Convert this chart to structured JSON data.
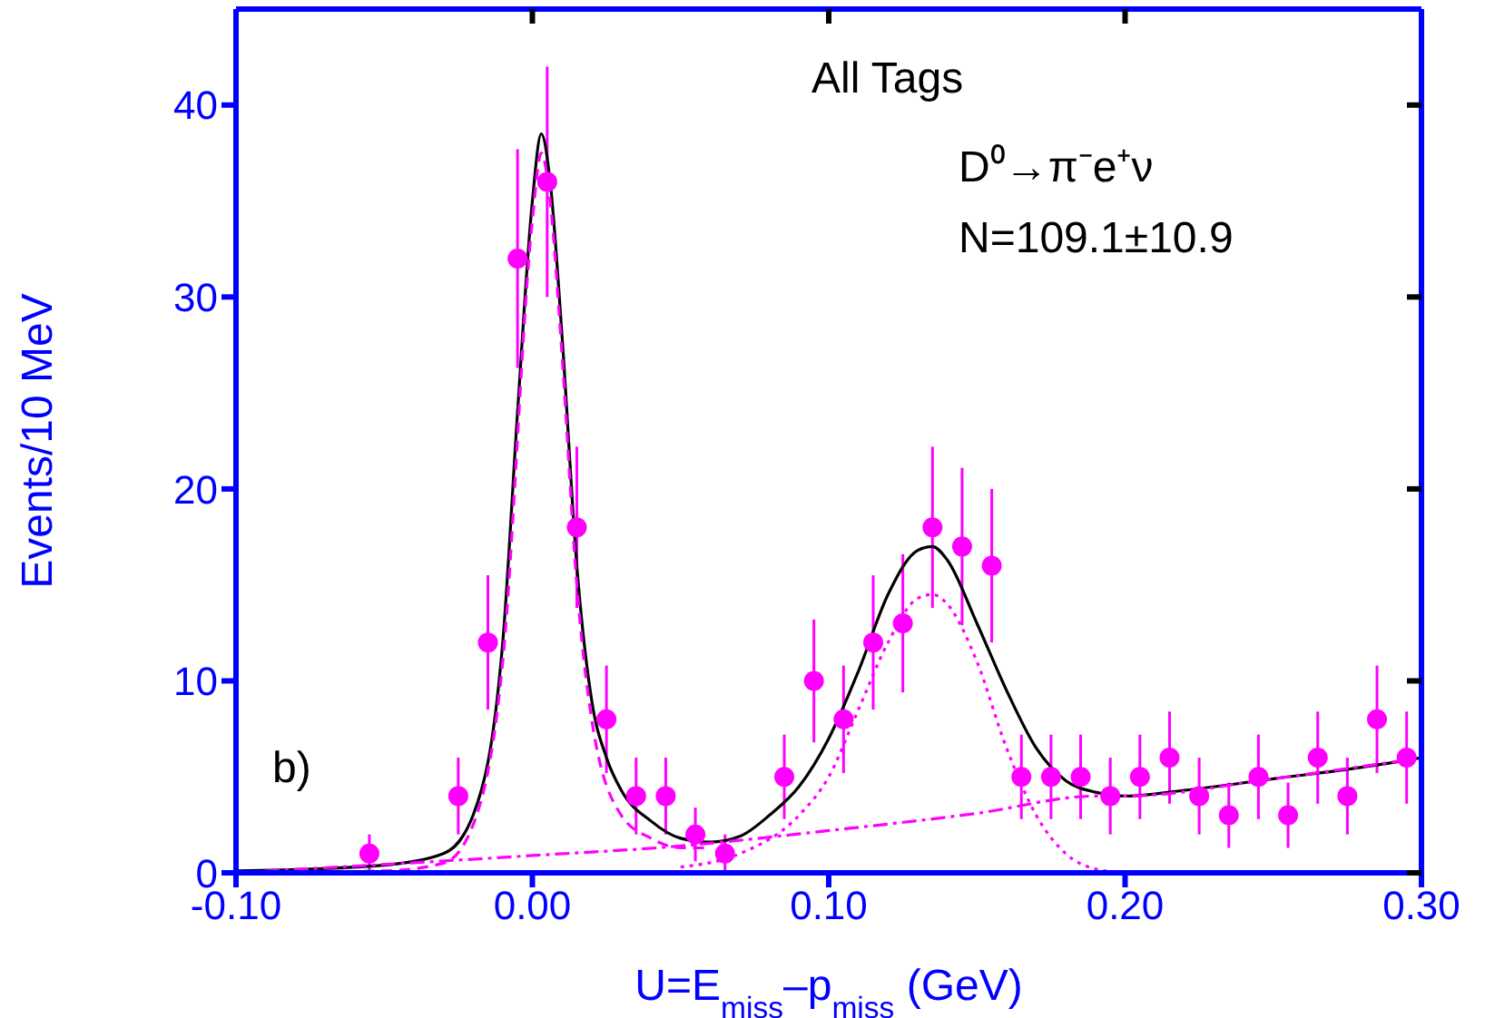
{
  "chart_data": {
    "type": "scatter",
    "xlabel": "U=E$_{miss}$–p$_{miss}$ (GeV)",
    "ylabel": "Events/10 MeV",
    "xlim": [
      -0.1,
      0.3
    ],
    "xticks": [
      {
        "value": -0.1,
        "label": "-0.10"
      },
      {
        "value": 0,
        "label": "0.00"
      },
      {
        "value": 0.1,
        "label": "0.10"
      },
      {
        "value": 0.2,
        "label": "0.20"
      },
      {
        "value": 0.3,
        "label": "0.30"
      }
    ],
    "ylim": [
      0,
      45
    ],
    "yticks": [
      0,
      10,
      20,
      30,
      40
    ],
    "annotations": [
      "All Tags",
      "D⁰→π⁻e⁺ν",
      "N=109.1±10.9",
      "b)"
    ],
    "series": [
      {
        "color": "#ff00ff",
        "marker": "circle",
        "x": [
          -0.055,
          -0.025,
          -0.015,
          -0.005,
          0.005,
          0.015,
          0.025,
          0.035,
          0.045,
          0.055,
          0.065,
          0.085,
          0.095,
          0.105,
          0.115,
          0.125,
          0.135,
          0.145,
          0.155,
          0.165,
          0.175,
          0.185,
          0.195,
          0.205,
          0.215,
          0.225,
          0.235,
          0.245,
          0.255,
          0.265,
          0.275,
          0.285,
          0.295
        ],
        "values": [
          1,
          4,
          12,
          32,
          36,
          18,
          8,
          4,
          4,
          2,
          1,
          5,
          10,
          8,
          12,
          13,
          18,
          17,
          16,
          5,
          5,
          5,
          4,
          5,
          6,
          4,
          3,
          5,
          3,
          6,
          4,
          8,
          6
        ],
        "errors": [
          1,
          2,
          3.5,
          5.7,
          6,
          4.2,
          2.8,
          2,
          2,
          1.4,
          1,
          2.2,
          3.2,
          2.8,
          3.5,
          3.6,
          4.2,
          4.1,
          4,
          2.2,
          2.2,
          2.2,
          2,
          2.2,
          2.4,
          2,
          1.7,
          2.2,
          1.7,
          2.4,
          2,
          2.8,
          2.4
        ]
      },
      {
        "type": "line",
        "color": "#000000",
        "line_style": "solid",
        "x": [
          -0.1,
          -0.05,
          -0.03,
          -0.02,
          -0.01,
          -0.005,
          0,
          0.003,
          0.006,
          0.01,
          0.015,
          0.02,
          0.025,
          0.03,
          0.04,
          0.05,
          0.06,
          0.07,
          0.08,
          0.09,
          0.1,
          0.11,
          0.12,
          0.13,
          0.135,
          0.14,
          0.15,
          0.16,
          0.17,
          0.18,
          0.19,
          0.2,
          0.22,
          0.25,
          0.28,
          0.3
        ],
        "values": [
          0.1,
          0.4,
          1,
          3,
          12,
          24,
          35,
          38.5,
          36,
          28,
          16,
          9,
          6,
          4.3,
          2.7,
          1.8,
          1.6,
          1.9,
          3,
          4.5,
          7,
          10.5,
          14.5,
          16.8,
          17,
          16.3,
          13,
          9.5,
          6.5,
          4.8,
          4.2,
          4,
          4.3,
          4.9,
          5.5,
          6
        ]
      },
      {
        "type": "line",
        "color": "#ff00ff",
        "line_style": "dashed",
        "x": [
          -0.1,
          -0.05,
          -0.03,
          -0.02,
          -0.01,
          0,
          0.003,
          0.006,
          0.01,
          0.015,
          0.02,
          0.03,
          0.04,
          0.05,
          0.06
        ],
        "values": [
          0,
          0.1,
          0.5,
          2.5,
          11,
          34,
          37.5,
          35,
          27,
          15,
          8,
          3,
          1.8,
          1.3,
          1.3
        ]
      },
      {
        "type": "line",
        "color": "#ff00ff",
        "line_style": "dotted",
        "x": [
          0.05,
          0.07,
          0.09,
          0.1,
          0.11,
          0.12,
          0.13,
          0.135,
          0.14,
          0.15,
          0.16,
          0.17,
          0.18,
          0.19,
          0.2
        ],
        "values": [
          0.3,
          1,
          3,
          5,
          8.5,
          12,
          14.3,
          14.5,
          14,
          11,
          6.5,
          3,
          1,
          0.2,
          0
        ]
      },
      {
        "type": "line",
        "color": "#ff00ff",
        "line_style": "dashdot",
        "x": [
          -0.1,
          0,
          0.05,
          0.1,
          0.15,
          0.19,
          0.2,
          0.25,
          0.3
        ],
        "values": [
          0,
          0.9,
          1.4,
          2.2,
          3.1,
          4,
          4,
          4.9,
          6
        ]
      }
    ]
  }
}
